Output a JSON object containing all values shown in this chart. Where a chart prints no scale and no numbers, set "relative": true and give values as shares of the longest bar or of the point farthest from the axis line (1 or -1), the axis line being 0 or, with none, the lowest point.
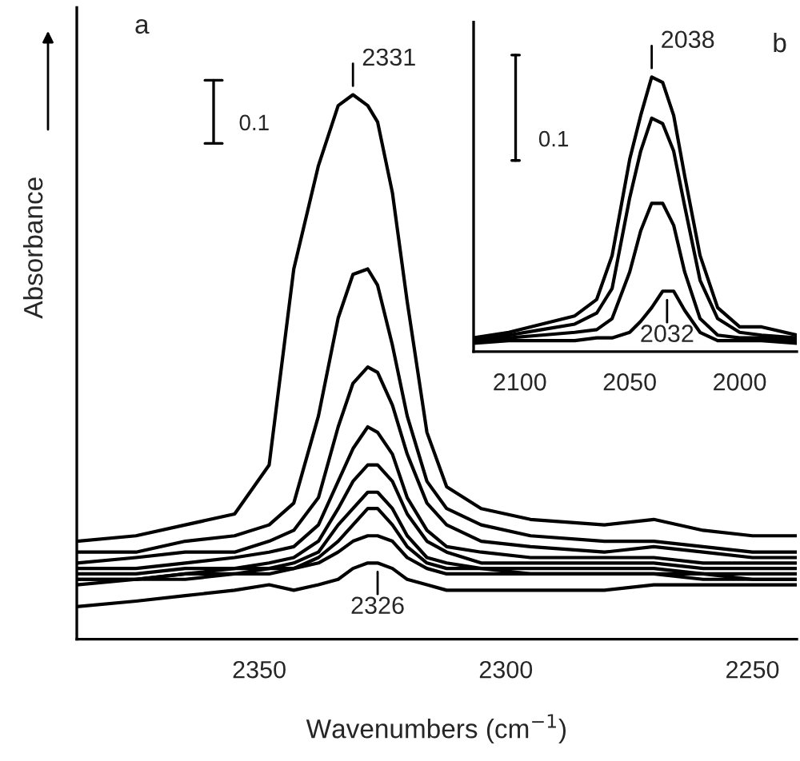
{
  "chart_data": [
    {
      "type": "line",
      "relative": true,
      "xlabel": "Wavenumbers (cm$^{−1}$)",
      "ylabel": "Absorbance",
      "tick_labels": "x",
      "xlim": [
        2387,
        2241
      ],
      "xticks": [
        2350,
        2300,
        2250
      ],
      "x": [
        2387,
        2375,
        2365,
        2355,
        2348,
        2343,
        2338,
        2334,
        2331,
        2328,
        2326,
        2323,
        2320,
        2316,
        2312,
        2305,
        2295,
        2280,
        2270,
        2260,
        2250,
        2241
      ],
      "series": [
        {
          "color": "#000000",
          "values": [
            0.18,
            0.19,
            0.21,
            0.23,
            0.32,
            0.68,
            0.87,
            0.98,
            1.0,
            0.98,
            0.95,
            0.82,
            0.62,
            0.38,
            0.28,
            0.24,
            0.22,
            0.21,
            0.22,
            0.2,
            0.19,
            0.19
          ]
        },
        {
          "color": "#000000",
          "values": [
            0.16,
            0.16,
            0.18,
            0.19,
            0.21,
            0.25,
            0.41,
            0.59,
            0.67,
            0.68,
            0.65,
            0.54,
            0.41,
            0.29,
            0.24,
            0.21,
            0.19,
            0.18,
            0.18,
            0.17,
            0.16,
            0.16
          ]
        },
        {
          "color": "#000000",
          "values": [
            0.14,
            0.15,
            0.16,
            0.16,
            0.18,
            0.2,
            0.26,
            0.39,
            0.47,
            0.5,
            0.49,
            0.43,
            0.34,
            0.25,
            0.21,
            0.18,
            0.17,
            0.16,
            0.17,
            0.16,
            0.15,
            0.15
          ]
        },
        {
          "color": "#000000",
          "values": [
            0.13,
            0.13,
            0.14,
            0.15,
            0.16,
            0.17,
            0.21,
            0.29,
            0.35,
            0.39,
            0.38,
            0.34,
            0.26,
            0.2,
            0.17,
            0.16,
            0.15,
            0.15,
            0.15,
            0.14,
            0.14,
            0.14
          ]
        },
        {
          "color": "#000000",
          "values": [
            0.12,
            0.12,
            0.13,
            0.13,
            0.14,
            0.15,
            0.18,
            0.24,
            0.29,
            0.32,
            0.32,
            0.29,
            0.23,
            0.18,
            0.16,
            0.14,
            0.14,
            0.14,
            0.14,
            0.13,
            0.13,
            0.13
          ]
        },
        {
          "color": "#000000",
          "values": [
            0.11,
            0.11,
            0.12,
            0.13,
            0.13,
            0.14,
            0.16,
            0.21,
            0.24,
            0.27,
            0.27,
            0.24,
            0.19,
            0.15,
            0.14,
            0.13,
            0.13,
            0.13,
            0.13,
            0.12,
            0.12,
            0.12
          ]
        },
        {
          "color": "#000000",
          "values": [
            0.11,
            0.11,
            0.12,
            0.12,
            0.13,
            0.13,
            0.15,
            0.18,
            0.21,
            0.24,
            0.24,
            0.21,
            0.17,
            0.14,
            0.13,
            0.13,
            0.12,
            0.12,
            0.12,
            0.12,
            0.11,
            0.11
          ]
        },
        {
          "color": "#000000",
          "values": [
            0.1,
            0.11,
            0.11,
            0.12,
            0.12,
            0.13,
            0.14,
            0.16,
            0.18,
            0.19,
            0.19,
            0.18,
            0.15,
            0.13,
            0.12,
            0.12,
            0.12,
            0.12,
            0.12,
            0.11,
            0.11,
            0.11
          ]
        },
        {
          "color": "#000000",
          "values": [
            0.06,
            0.07,
            0.08,
            0.09,
            0.1,
            0.09,
            0.1,
            0.11,
            0.13,
            0.14,
            0.14,
            0.13,
            0.11,
            0.1,
            0.09,
            0.09,
            0.09,
            0.09,
            0.1,
            0.1,
            0.1,
            0.1
          ]
        }
      ],
      "annotations": [
        "a",
        "0.1",
        {
          "text": "2331",
          "x": 2331,
          "y": 1.0
        },
        {
          "text": "2326",
          "x": 2326,
          "y": 0.14
        }
      ]
    },
    {
      "type": "line",
      "relative": true,
      "tick_labels": "x",
      "xlim": [
        2121,
        1974
      ],
      "xticks": [
        2100,
        2050,
        2000
      ],
      "x": [
        2121,
        2105,
        2090,
        2075,
        2065,
        2058,
        2050,
        2045,
        2040,
        2035,
        2030,
        2025,
        2018,
        2010,
        2000,
        1990,
        1974
      ],
      "series": [
        {
          "color": "#000000",
          "values": [
            0.05,
            0.07,
            0.1,
            0.13,
            0.19,
            0.35,
            0.7,
            0.86,
            1.0,
            0.98,
            0.86,
            0.64,
            0.35,
            0.16,
            0.09,
            0.09,
            0.06
          ]
        },
        {
          "color": "#000000",
          "values": [
            0.04,
            0.06,
            0.08,
            0.1,
            0.14,
            0.23,
            0.56,
            0.73,
            0.85,
            0.83,
            0.73,
            0.53,
            0.26,
            0.12,
            0.07,
            0.06,
            0.05
          ]
        },
        {
          "color": "#000000",
          "values": [
            0.04,
            0.05,
            0.06,
            0.07,
            0.08,
            0.12,
            0.29,
            0.44,
            0.54,
            0.54,
            0.46,
            0.29,
            0.12,
            0.06,
            0.05,
            0.05,
            0.04
          ]
        },
        {
          "color": "#000000",
          "values": [
            0.03,
            0.04,
            0.04,
            0.04,
            0.05,
            0.05,
            0.07,
            0.11,
            0.16,
            0.22,
            0.22,
            0.15,
            0.07,
            0.04,
            0.04,
            0.04,
            0.03
          ]
        }
      ],
      "annotations": [
        "b",
        "0.1",
        {
          "text": "2038",
          "x": 2040,
          "y": 1.0
        },
        {
          "text": "2032",
          "x": 2033,
          "y": 0.22
        }
      ]
    }
  ]
}
